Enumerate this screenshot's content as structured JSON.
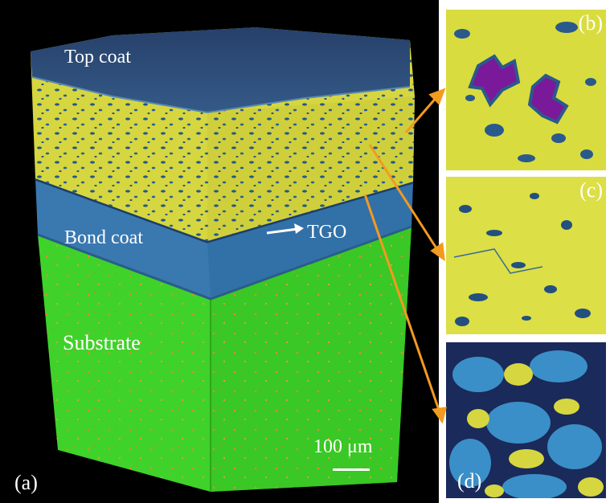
{
  "panel_a": {
    "label_top_coat": "Top coat",
    "label_bond_coat": "Bond coat",
    "label_tgo": "TGO",
    "label_substrate": "Substrate",
    "scale_bar": "100 μm",
    "panel_label": "(a)"
  },
  "panel_b": {
    "panel_label": "(b)"
  },
  "panel_c": {
    "panel_label": "(c)"
  },
  "panel_d": {
    "panel_label": "(d)"
  },
  "colors": {
    "top_coat": "#d6d640",
    "top_coat_pores": "#2a5a8c",
    "bond_coat": "#3a78b0",
    "substrate": "#3fd22a",
    "substrate_particles": "#e08a30",
    "large_pores": "#7a1a9a",
    "arrows": "#f39a20",
    "background": "#000000"
  }
}
